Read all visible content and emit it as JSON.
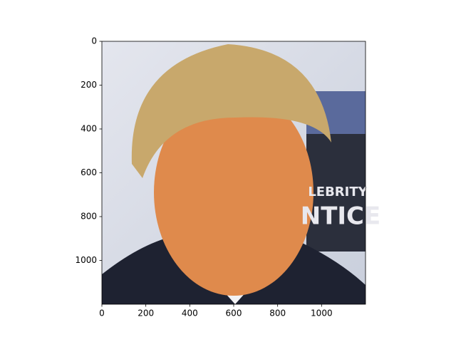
{
  "chart_data": {
    "type": "image",
    "xlim": [
      0,
      1200
    ],
    "ylim": [
      1200,
      0
    ],
    "xticks": [
      0,
      200,
      400,
      600,
      800,
      1000
    ],
    "yticks": [
      0,
      200,
      400,
      600,
      800,
      1000
    ],
    "image_text": [
      "LEBRITY",
      "NTICE"
    ]
  }
}
